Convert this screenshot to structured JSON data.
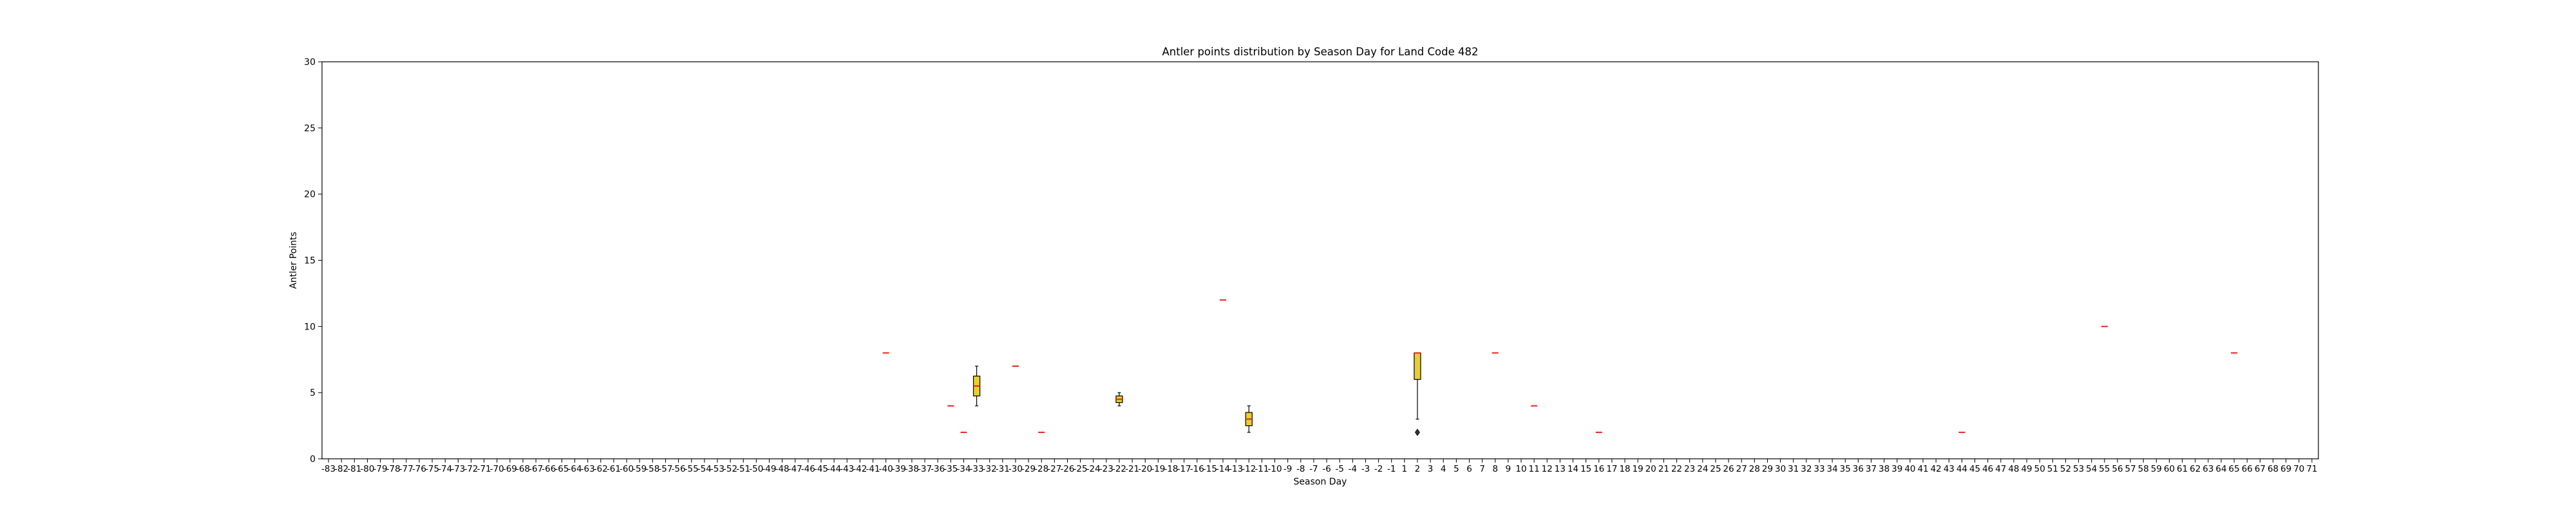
{
  "chart_data": {
    "type": "box",
    "title": "Antler points distribution by Season Day for Land Code 482",
    "xlabel": "Season Day",
    "ylabel": "Antler Points",
    "ylim": [
      0,
      30
    ],
    "yticks": [
      0,
      5,
      10,
      15,
      20,
      25,
      30
    ],
    "x_range": [
      -83,
      71
    ],
    "x_missing": [
      0
    ],
    "grid": false,
    "legend": "none",
    "colors": {
      "box_fill": "#e6cf2f",
      "median": "#e8221d",
      "line": "#000000"
    },
    "boxes": [
      {
        "x": -40,
        "q1": 8,
        "median": 8,
        "q3": 8,
        "whislo": 8,
        "whishi": 8,
        "fliers": []
      },
      {
        "x": -35,
        "q1": 4,
        "median": 4,
        "q3": 4,
        "whislo": 4,
        "whishi": 4,
        "fliers": []
      },
      {
        "x": -34,
        "q1": 2,
        "median": 2,
        "q3": 2,
        "whislo": 2,
        "whishi": 2,
        "fliers": []
      },
      {
        "x": -33,
        "q1": 4.75,
        "median": 5.5,
        "q3": 6.25,
        "whislo": 4,
        "whishi": 7,
        "fliers": []
      },
      {
        "x": -30,
        "q1": 7,
        "median": 7,
        "q3": 7,
        "whislo": 7,
        "whishi": 7,
        "fliers": []
      },
      {
        "x": -28,
        "q1": 2,
        "median": 2,
        "q3": 2,
        "whislo": 2,
        "whishi": 2,
        "fliers": []
      },
      {
        "x": -22,
        "q1": 4.25,
        "median": 4.5,
        "q3": 4.75,
        "whislo": 4,
        "whishi": 5,
        "fliers": []
      },
      {
        "x": -14,
        "q1": 12,
        "median": 12,
        "q3": 12,
        "whislo": 12,
        "whishi": 12,
        "fliers": []
      },
      {
        "x": -12,
        "q1": 2.5,
        "median": 3,
        "q3": 3.5,
        "whislo": 2,
        "whishi": 4,
        "fliers": []
      },
      {
        "x": 2,
        "q1": 6,
        "median": 8,
        "q3": 8,
        "whislo": 3,
        "whishi": 8,
        "fliers": [
          2
        ]
      },
      {
        "x": 8,
        "q1": 8,
        "median": 8,
        "q3": 8,
        "whislo": 8,
        "whishi": 8,
        "fliers": []
      },
      {
        "x": 11,
        "q1": 4,
        "median": 4,
        "q3": 4,
        "whislo": 4,
        "whishi": 4,
        "fliers": []
      },
      {
        "x": 16,
        "q1": 2,
        "median": 2,
        "q3": 2,
        "whislo": 2,
        "whishi": 2,
        "fliers": []
      },
      {
        "x": 44,
        "q1": 2,
        "median": 2,
        "q3": 2,
        "whislo": 2,
        "whishi": 2,
        "fliers": []
      },
      {
        "x": 55,
        "q1": 10,
        "median": 10,
        "q3": 10,
        "whislo": 10,
        "whishi": 10,
        "fliers": []
      },
      {
        "x": 65,
        "q1": 8,
        "median": 8,
        "q3": 8,
        "whislo": 8,
        "whishi": 8,
        "fliers": []
      }
    ]
  }
}
